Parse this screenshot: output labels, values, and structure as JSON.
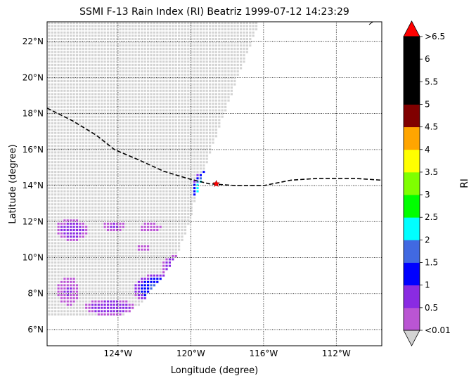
{
  "chart_data": {
    "type": "heatmap",
    "title": "SSMI F-13 Rain Index (RI) Beatriz 1999-07-12 14:23:29",
    "xlabel": "Longitude (degree)",
    "ylabel": "Latitude (degree)",
    "xlim": [
      -127.9,
      -109.5
    ],
    "ylim": [
      5.1,
      23.1
    ],
    "xticks": [
      {
        "value": -124,
        "label": "124°W"
      },
      {
        "value": -120,
        "label": "120°W"
      },
      {
        "value": -116,
        "label": "116°W"
      },
      {
        "value": -112,
        "label": "112°W"
      }
    ],
    "yticks": [
      {
        "value": 6,
        "label": "6°N"
      },
      {
        "value": 8,
        "label": "8°N"
      },
      {
        "value": 10,
        "label": "10°N"
      },
      {
        "value": 12,
        "label": "12°N"
      },
      {
        "value": 14,
        "label": "14°N"
      },
      {
        "value": 16,
        "label": "16°N"
      },
      {
        "value": 18,
        "label": "18°N"
      },
      {
        "value": 20,
        "label": "20°N"
      },
      {
        "value": 22,
        "label": "22°N"
      }
    ],
    "grid": true,
    "colorbar": {
      "label": "RI",
      "extend": "both",
      "under_color": "#d3d3d3",
      "over_color": "#ff0000",
      "levels": [
        0.01,
        0.5,
        1,
        1.5,
        2,
        2.5,
        3,
        3.5,
        4,
        4.5,
        5,
        5.5,
        6,
        6.5
      ],
      "colors": [
        "#ba55d3",
        "#8a2be2",
        "#0000ff",
        "#4169e1",
        "#00ffff",
        "#00ff00",
        "#7fff00",
        "#ffff00",
        "#ffa500",
        "#800000",
        "#000000",
        "#000000",
        "#000000"
      ],
      "tick_labels": [
        "<0.01",
        "0.5",
        "1",
        "1.5",
        "2",
        "2.5",
        "3",
        "3.5",
        "4",
        "4.5",
        "5",
        "5.5",
        "6",
        ">6.5"
      ]
    },
    "storm_track": [
      [
        -127.9,
        18.3
      ],
      [
        -126.5,
        17.6
      ],
      [
        -125.2,
        16.8
      ],
      [
        -124.2,
        16.0
      ],
      [
        -122.8,
        15.4
      ],
      [
        -121.5,
        14.8
      ],
      [
        -120.2,
        14.4
      ],
      [
        -119.0,
        14.1
      ],
      [
        -117.5,
        14.0
      ],
      [
        -116.0,
        14.0
      ],
      [
        -114.5,
        14.3
      ],
      [
        -113.0,
        14.4
      ],
      [
        -111.0,
        14.4
      ],
      [
        -109.5,
        14.3
      ]
    ],
    "storm_center": {
      "lon": -118.6,
      "lat": 14.1
    },
    "swath": {
      "left_edge": [
        [
          -127.9,
          23.1
        ],
        [
          -127.9,
          7.0
        ]
      ],
      "right_edge": [
        [
          -116.3,
          23.1
        ],
        [
          -117.5,
          20.0
        ],
        [
          -118.6,
          17.0
        ],
        [
          -119.6,
          14.0
        ],
        [
          -120.3,
          11.5
        ],
        [
          -120.9,
          10.0
        ],
        [
          -121.6,
          9.0
        ],
        [
          -122.8,
          7.5
        ],
        [
          -123.8,
          6.8
        ]
      ],
      "bottom_edge": [
        [
          -127.9,
          7.0
        ],
        [
          -126.5,
          6.85
        ],
        [
          -125.0,
          6.75
        ],
        [
          -123.8,
          6.8
        ]
      ]
    },
    "rain_regions": [
      {
        "lon": -119.1,
        "lat": 13.9,
        "rlon": 0.85,
        "rlat": 1.05,
        "peak": 3.3
      },
      {
        "lon": -121.6,
        "lat": 8.3,
        "rlon": 1.6,
        "rlat": 0.9,
        "peak": 1.8
      },
      {
        "lon": -120.8,
        "lat": 9.5,
        "rlon": 0.9,
        "rlat": 0.7,
        "peak": 1.0
      },
      {
        "lon": -124.5,
        "lat": 7.3,
        "rlon": 1.4,
        "rlat": 0.45,
        "peak": 0.9
      },
      {
        "lon": -126.6,
        "lat": 11.6,
        "rlon": 0.9,
        "rlat": 0.6,
        "peak": 0.8
      },
      {
        "lon": -126.8,
        "lat": 8.2,
        "rlon": 0.6,
        "rlat": 0.8,
        "peak": 0.55
      },
      {
        "lon": -124.3,
        "lat": 11.8,
        "rlon": 0.6,
        "rlat": 0.3,
        "peak": 0.6
      },
      {
        "lon": -122.3,
        "lat": 11.7,
        "rlon": 0.6,
        "rlat": 0.3,
        "peak": 0.5
      },
      {
        "lon": -122.6,
        "lat": 10.6,
        "rlon": 0.35,
        "rlat": 0.25,
        "peak": 0.4
      }
    ]
  }
}
